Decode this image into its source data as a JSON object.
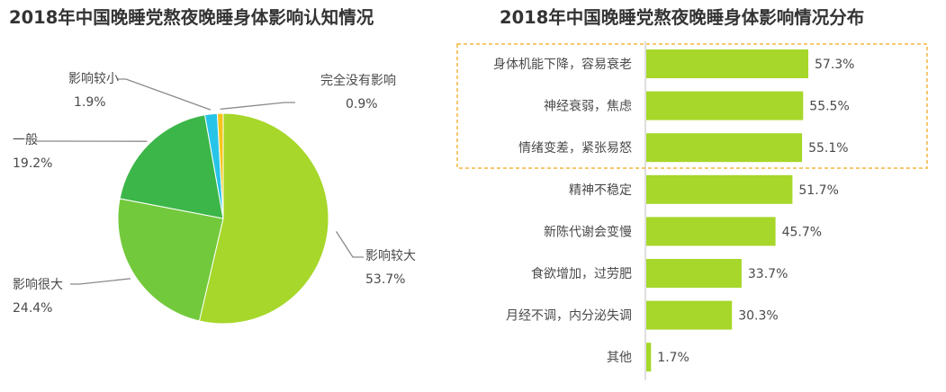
{
  "chart_data": [
    {
      "type": "pie",
      "title": "2018年中国晚睡党熬夜晚睡身体影响认知情况",
      "slices": [
        {
          "label": "影响较大",
          "value": 53.7,
          "value_label": "53.7%",
          "color": "#a6d72a"
        },
        {
          "label": "影响很大",
          "value": 24.4,
          "value_label": "24.4%",
          "color": "#73c93c"
        },
        {
          "label": "一般",
          "value": 19.2,
          "value_label": "19.2%",
          "color": "#3cb649"
        },
        {
          "label": "影响较小",
          "value": 1.9,
          "value_label": "1.9%",
          "color": "#27c4e8"
        },
        {
          "label": "完全没有影响",
          "value": 0.9,
          "value_label": "0.9%",
          "color": "#f6c51b"
        }
      ]
    },
    {
      "type": "bar",
      "orientation": "horizontal",
      "title": "2018年中国晚睡党熬夜晚睡身体影响情况分布",
      "categories": [
        "身体机能下降，容易衰老",
        "神经衰弱，焦虑",
        "情绪变差，紧张易怒",
        "精神不稳定",
        "新陈代谢会变慢",
        "食欲增加，过劳肥",
        "月经不调，内分泌失调",
        "其他"
      ],
      "values": [
        57.3,
        55.5,
        55.1,
        51.7,
        45.7,
        33.7,
        30.3,
        1.7
      ],
      "value_labels": [
        "57.3%",
        "55.5%",
        "55.1%",
        "51.7%",
        "45.7%",
        "33.7%",
        "30.3%",
        "1.7%"
      ],
      "bar_color": "#a6d72a",
      "highlight_box_color": "#f4b63f",
      "highlighted_count": 3
    }
  ]
}
